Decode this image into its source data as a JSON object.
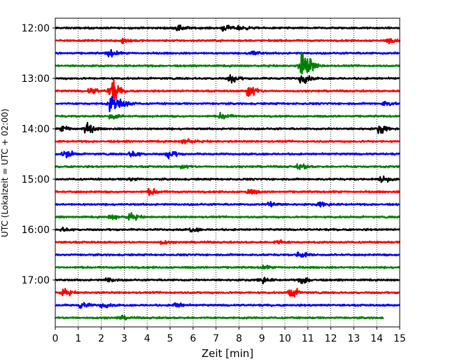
{
  "chart_data": {
    "type": "line",
    "title": "",
    "xlabel": "Zeit  [min]",
    "ylabel": "UTC (Lokalzeit = UTC + 02:00)",
    "xlim": [
      0,
      15
    ],
    "x_ticks": [
      "0",
      "1",
      "2",
      "3",
      "4",
      "5",
      "6",
      "7",
      "8",
      "9",
      "10",
      "11",
      "12",
      "13",
      "14",
      "15"
    ],
    "y_tick_labels": [
      "12:00",
      "13:00",
      "14:00",
      "15:00",
      "16:00",
      "17:00"
    ],
    "trace_interval_min": 15,
    "trace_colors": [
      "#000000",
      "#ff0000",
      "#0000ff",
      "#008000"
    ],
    "grid": "vertical dotted lines at each minute",
    "traces": [
      {
        "start": "12:00",
        "events": [
          [
            5.3,
            0.5
          ],
          [
            7.3,
            0.45
          ],
          [
            8.0,
            0.35
          ]
        ]
      },
      {
        "start": "12:15",
        "events": [
          [
            2.9,
            0.6
          ],
          [
            14.5,
            0.4
          ]
        ]
      },
      {
        "start": "12:30",
        "events": [
          [
            2.3,
            0.6
          ],
          [
            8.5,
            0.5
          ]
        ]
      },
      {
        "start": "12:45",
        "events": [
          [
            10.7,
            2.6
          ],
          [
            11.0,
            0.6
          ]
        ]
      },
      {
        "start": "13:00",
        "events": [
          [
            7.6,
            0.7
          ],
          [
            10.7,
            0.9
          ]
        ]
      },
      {
        "start": "13:15",
        "events": [
          [
            2.4,
            2.0
          ],
          [
            1.5,
            0.5
          ],
          [
            8.4,
            1.2
          ]
        ]
      },
      {
        "start": "13:30",
        "events": [
          [
            2.4,
            1.5
          ],
          [
            2.9,
            0.6
          ],
          [
            14.3,
            0.4
          ]
        ]
      },
      {
        "start": "13:45",
        "events": [
          [
            7.2,
            0.5
          ],
          [
            2.4,
            0.5
          ]
        ]
      },
      {
        "start": "14:00",
        "events": [
          [
            1.3,
            1.0
          ],
          [
            0.3,
            0.5
          ],
          [
            14.1,
            0.8
          ]
        ]
      },
      {
        "start": "14:15",
        "events": [
          [
            5.6,
            0.5
          ]
        ]
      },
      {
        "start": "14:30",
        "events": [
          [
            0.4,
            0.7
          ],
          [
            3.3,
            0.6
          ],
          [
            4.9,
            0.7
          ]
        ]
      },
      {
        "start": "14:45",
        "events": [
          [
            10.6,
            0.5
          ],
          [
            5.5,
            0.3
          ]
        ]
      },
      {
        "start": "15:00",
        "events": [
          [
            14.2,
            0.7
          ],
          [
            3.2,
            0.3
          ]
        ]
      },
      {
        "start": "15:15",
        "events": [
          [
            8.4,
            0.5
          ],
          [
            4.1,
            0.5
          ]
        ]
      },
      {
        "start": "15:30",
        "events": [
          [
            9.3,
            0.5
          ],
          [
            11.5,
            0.5
          ]
        ]
      },
      {
        "start": "15:45",
        "events": [
          [
            3.2,
            0.6
          ],
          [
            2.4,
            0.4
          ]
        ]
      },
      {
        "start": "16:00",
        "events": [
          [
            5.9,
            0.35
          ],
          [
            0.3,
            0.3
          ]
        ]
      },
      {
        "start": "16:15",
        "events": [
          [
            9.6,
            0.4
          ],
          [
            4.6,
            0.3
          ]
        ]
      },
      {
        "start": "16:30",
        "events": [
          [
            10.6,
            0.6
          ]
        ]
      },
      {
        "start": "16:45",
        "events": [
          [
            9.0,
            0.25
          ]
        ]
      },
      {
        "start": "17:00",
        "events": [
          [
            8.9,
            0.6
          ],
          [
            10.7,
            0.7
          ],
          [
            2.2,
            0.4
          ]
        ]
      },
      {
        "start": "17:15",
        "events": [
          [
            10.2,
            0.9
          ],
          [
            0.3,
            0.6
          ]
        ]
      },
      {
        "start": "17:30",
        "events": [
          [
            5.2,
            0.45
          ],
          [
            1.1,
            0.5
          ],
          [
            2.0,
            0.4
          ]
        ]
      },
      {
        "start": "17:45",
        "events": [
          [
            2.8,
            0.3
          ]
        ],
        "end": 14.3
      }
    ]
  }
}
